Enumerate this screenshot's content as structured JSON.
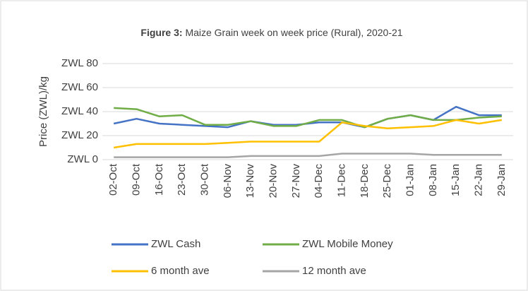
{
  "chart_data": {
    "type": "line",
    "title_label": "Figure 3:",
    "title": "Maize Grain week on week price (Rural), 2020-21",
    "y_axis_label": "Price (ZWL)/kg",
    "categories": [
      "02-Oct",
      "09-Oct",
      "16-Oct",
      "23-Oct",
      "30-Oct",
      "06-Nov",
      "13-Nov",
      "20-Nov",
      "27-Nov",
      "04-Dec",
      "11-Dec",
      "18-Dec",
      "25-Dec",
      "01-Jan",
      "08-Jan",
      "15-Jan",
      "22-Jan",
      "29-Jan"
    ],
    "series": [
      {
        "name": "ZWL Cash",
        "color": "#4472c4",
        "values": [
          30,
          34,
          30,
          29,
          28,
          27,
          32,
          29,
          29,
          31,
          31,
          27,
          34,
          37,
          33,
          44,
          37,
          37
        ]
      },
      {
        "name": "ZWL Mobile Money",
        "color": "#70ad47",
        "values": [
          43,
          42,
          36,
          37,
          29,
          29,
          32,
          28,
          28,
          33,
          33,
          27,
          34,
          37,
          33,
          33,
          35,
          36
        ]
      },
      {
        "name": "6 month ave",
        "color": "#ffc000",
        "values": [
          10,
          13,
          13,
          13,
          13,
          14,
          15,
          15,
          15,
          15,
          31,
          28,
          26,
          27,
          28,
          33,
          30,
          33
        ]
      },
      {
        "name": "12 month ave",
        "color": "#a5a5a5",
        "values": [
          2,
          2,
          2,
          2,
          2,
          2,
          3,
          3,
          3,
          3,
          5,
          5,
          5,
          5,
          4,
          4,
          4,
          4
        ]
      }
    ],
    "ylim": [
      0,
      80
    ],
    "yticks": [
      {
        "value": 0,
        "label": "ZWL 0"
      },
      {
        "value": 20,
        "label": "ZWL 20"
      },
      {
        "value": 40,
        "label": "ZWL 40"
      },
      {
        "value": 60,
        "label": "ZWL 60"
      },
      {
        "value": 80,
        "label": "ZWL 80"
      }
    ],
    "grid": true
  }
}
